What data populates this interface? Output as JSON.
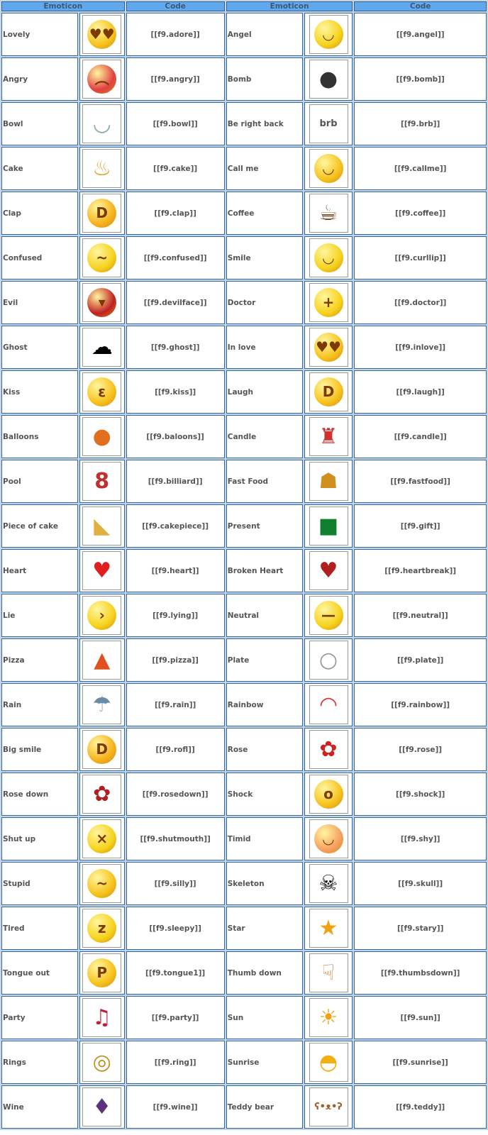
{
  "header": [
    "Emoticon",
    "Code",
    "Emoticon",
    "Code"
  ],
  "rows": [
    [
      {
        "name": "Lovely",
        "code": "[[f9.adore]]",
        "icon": "heart-eyes-face-icon"
      },
      {
        "name": "Angel",
        "code": "[[f9.angel]]",
        "icon": "angel-face-icon"
      }
    ],
    [
      {
        "name": "Angry",
        "code": "[[f9.angry]]",
        "icon": "angry-face-icon"
      },
      {
        "name": "Bomb",
        "code": "[[f9.bomb]]",
        "icon": "bomb-icon"
      }
    ],
    [
      {
        "name": "Bowl",
        "code": "[[f9.bowl]]",
        "icon": "bowl-icon"
      },
      {
        "name": "Be right back",
        "code": "[[f9.brb]]",
        "icon": "brb-sign-icon"
      }
    ],
    [
      {
        "name": "Cake",
        "code": "[[f9.cake]]",
        "icon": "birthday-cake-icon"
      },
      {
        "name": "Call me",
        "code": "[[f9.callme]]",
        "icon": "phone-face-icon"
      }
    ],
    [
      {
        "name": "Clap",
        "code": "[[f9.clap]]",
        "icon": "clap-face-icon"
      },
      {
        "name": "Coffee",
        "code": "[[f9.coffee]]",
        "icon": "coffee-icon"
      }
    ],
    [
      {
        "name": "Confused",
        "code": "[[f9.confused]]",
        "icon": "confused-face-icon"
      },
      {
        "name": "Smile",
        "code": "[[f9.curllip]]",
        "icon": "smile-face-icon"
      }
    ],
    [
      {
        "name": "Evil",
        "code": "[[f9.devilface]]",
        "icon": "devil-face-icon"
      },
      {
        "name": "Doctor",
        "code": "[[f9.doctor]]",
        "icon": "doctor-face-icon"
      }
    ],
    [
      {
        "name": "Ghost",
        "code": "[[f9.ghost]]",
        "icon": "ghost-icon"
      },
      {
        "name": "In love",
        "code": "[[f9.inlove]]",
        "icon": "in-love-face-icon"
      }
    ],
    [
      {
        "name": "Kiss",
        "code": "[[f9.kiss]]",
        "icon": "kiss-face-icon"
      },
      {
        "name": "Laugh",
        "code": "[[f9.laugh]]",
        "icon": "laugh-face-icon"
      }
    ],
    [
      {
        "name": "Balloons",
        "code": "[[f9.baloons]]",
        "icon": "balloons-icon"
      },
      {
        "name": "Candle",
        "code": "[[f9.candle]]",
        "icon": "candle-icon"
      }
    ],
    [
      {
        "name": "Pool",
        "code": "[[f9.billiard]]",
        "icon": "billiard-balls-icon"
      },
      {
        "name": "Fast Food",
        "code": "[[f9.fastfood]]",
        "icon": "fast-food-icon"
      }
    ],
    [
      {
        "name": "Piece of cake",
        "code": "[[f9.cakepiece]]",
        "icon": "cake-slice-icon"
      },
      {
        "name": "Present",
        "code": "[[f9.gift]]",
        "icon": "gift-icon"
      }
    ],
    [
      {
        "name": "Heart",
        "code": "[[f9.heart]]",
        "icon": "heart-icon"
      },
      {
        "name": "Broken Heart",
        "code": "[[f9.heartbreak]]",
        "icon": "broken-heart-icon"
      }
    ],
    [
      {
        "name": "Lie",
        "code": "[[f9.lying]]",
        "icon": "lying-face-icon"
      },
      {
        "name": "Neutral",
        "code": "[[f9.neutral]]",
        "icon": "neutral-face-icon"
      }
    ],
    [
      {
        "name": "Pizza",
        "code": "[[f9.pizza]]",
        "icon": "pizza-icon"
      },
      {
        "name": "Plate",
        "code": "[[f9.plate]]",
        "icon": "plate-icon"
      }
    ],
    [
      {
        "name": "Rain",
        "code": "[[f9.rain]]",
        "icon": "rain-cloud-icon"
      },
      {
        "name": "Rainbow",
        "code": "[[f9.rainbow]]",
        "icon": "rainbow-icon"
      }
    ],
    [
      {
        "name": "Big smile",
        "code": "[[f9.rofl]]",
        "icon": "big-smile-face-icon"
      },
      {
        "name": "Rose",
        "code": "[[f9.rose]]",
        "icon": "rose-icon"
      }
    ],
    [
      {
        "name": "Rose down",
        "code": "[[f9.rosedown]]",
        "icon": "wilted-rose-icon"
      },
      {
        "name": "Shock",
        "code": "[[f9.shock]]",
        "icon": "shocked-face-icon"
      }
    ],
    [
      {
        "name": "Shut up",
        "code": "[[f9.shutmouth]]",
        "icon": "shut-mouth-face-icon"
      },
      {
        "name": "Timid",
        "code": "[[f9.shy]]",
        "icon": "shy-face-icon"
      }
    ],
    [
      {
        "name": "Stupid",
        "code": "[[f9.silly]]",
        "icon": "silly-face-icon"
      },
      {
        "name": "Skeleton",
        "code": "[[f9.skull]]",
        "icon": "skull-icon"
      }
    ],
    [
      {
        "name": "Tired",
        "code": "[[f9.sleepy]]",
        "icon": "sleepy-face-icon"
      },
      {
        "name": "Star",
        "code": "[[f9.stary]]",
        "icon": "star-icon"
      }
    ],
    [
      {
        "name": "Tongue out",
        "code": "[[f9.tongue1]]",
        "icon": "tongue-out-face-icon"
      },
      {
        "name": "Thumb down",
        "code": "[[f9.thumbsdown]]",
        "icon": "thumbs-down-icon"
      }
    ],
    [
      {
        "name": "Party",
        "code": "[[f9.party]]",
        "icon": "party-icon"
      },
      {
        "name": "Sun",
        "code": "[[f9.sun]]",
        "icon": "sun-icon"
      }
    ],
    [
      {
        "name": "Rings",
        "code": "[[f9.ring]]",
        "icon": "wedding-rings-icon"
      },
      {
        "name": "Sunrise",
        "code": "[[f9.sunrise]]",
        "icon": "sunrise-icon"
      }
    ],
    [
      {
        "name": "Wine",
        "code": "[[f9.wine]]",
        "icon": "wine-bottles-icon"
      },
      {
        "name": "Teddy bear",
        "code": "[[f9.teddy]]",
        "icon": "teddy-bear-icon"
      }
    ]
  ]
}
